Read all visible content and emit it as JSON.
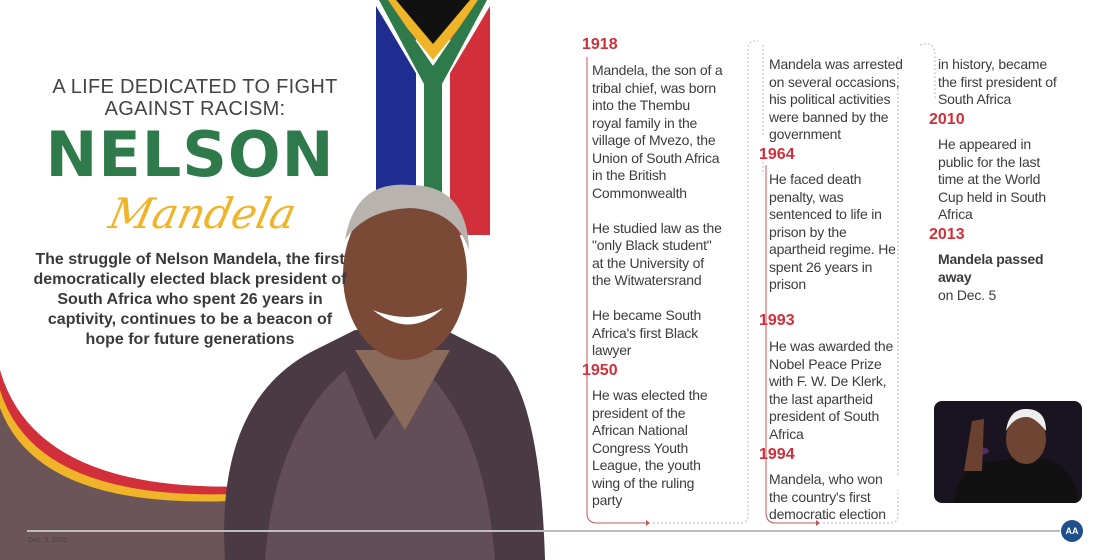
{
  "header": {
    "subtitle_line1": "A LIFE DEDICATED TO FIGHT",
    "subtitle_line2": "AGAINST RACISM:",
    "name_first": "NELSON",
    "name_last": "Mandela"
  },
  "intro": "The struggle of Nelson Mandela, the first democratically elected black president of South Africa who spent 26 years in captivity, continues to be a beacon of hope for future generations",
  "colors": {
    "green": "#2f7a4a",
    "yellow": "#f0b429",
    "red": "#d12f3a",
    "brown": "#6b5558"
  },
  "timeline": {
    "y1918": "1918",
    "t1918": [
      "Mandela, the son of a",
      "tribal chief, was born",
      "into the Thembu",
      "royal family in the",
      "village of Mvezo, the",
      "Union of South Africa",
      "in the British",
      "Commonwealth",
      "",
      "He studied law as the",
      "\"only Black student\"",
      "at the University of",
      "the Witwatersrand",
      "",
      "He became South",
      "Africa's first Black",
      "lawyer"
    ],
    "y1950": "1950",
    "t1950": [
      "He was elected the",
      "president of the",
      "African National",
      "Congress Youth",
      "League, the youth",
      "wing of the ruling",
      "party"
    ],
    "tcont": [
      "Mandela was arrested",
      "on several occasions,",
      "his political activities",
      "were banned by the",
      "government"
    ],
    "y1964": "1964",
    "t1964": [
      "He faced death",
      "penalty, was",
      "sentenced to life in",
      "prison by the",
      "apartheid regime. He",
      "spent 26 years in",
      "prison"
    ],
    "y1993": "1993",
    "t1993": [
      "He was awarded the",
      "Nobel Peace Prize",
      "with F. W. De Klerk,",
      "the last apartheid",
      "president of South",
      "Africa"
    ],
    "y1994": "1994",
    "t1994": [
      "Mandela, who won",
      "the country's first",
      "democratic election"
    ],
    "tcont2": [
      "in history, became",
      "the first president of",
      "South Africa"
    ],
    "y2010": "2010",
    "t2010": [
      "He appeared in",
      "public for the last",
      "time at the World",
      "Cup held in South",
      "Africa"
    ],
    "y2013": "2013",
    "t2013_bold": [
      "Mandela passed",
      "away"
    ],
    "t2013": [
      "on Dec. 5"
    ]
  },
  "footer": {
    "date": "Dec. 5, 2022",
    "logo": "AA"
  }
}
